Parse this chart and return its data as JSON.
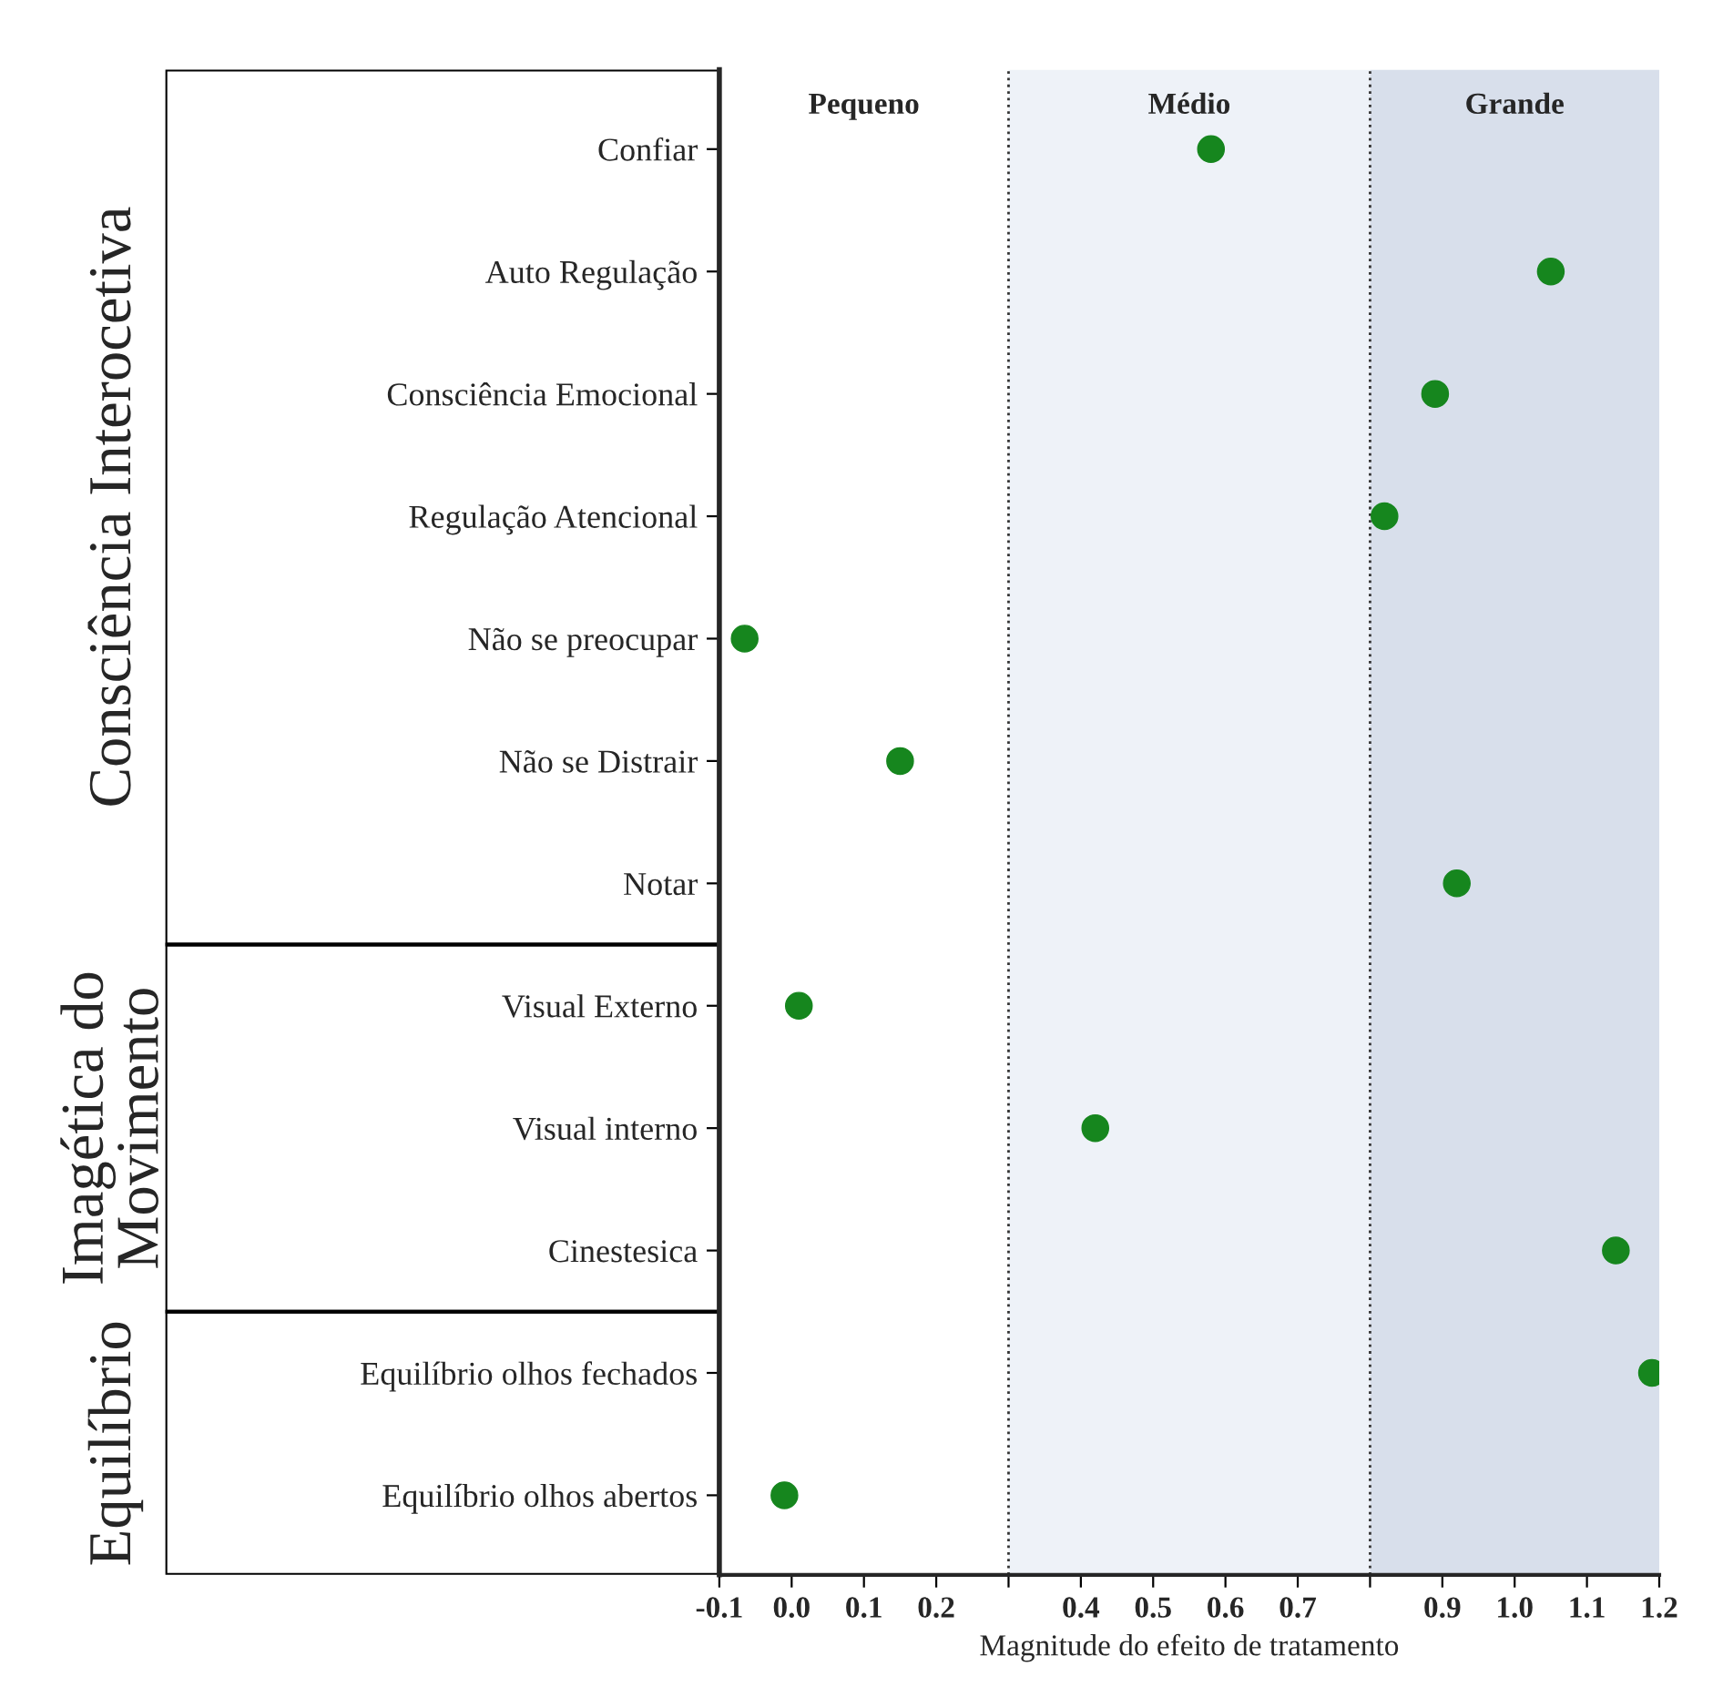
{
  "chart_data": {
    "type": "scatter",
    "orientation": "horizontal",
    "xlabel": "Magnitude do efeito de tratamento",
    "categories": [
      "Confiar",
      "Auto Regulação",
      "Consciência Emocional",
      "Regulação Atencional",
      "Não se preocupar",
      "Não se Distrair",
      "Notar",
      "Visual Externo",
      "Visual interno",
      "Cinestesica",
      "Equilíbrio olhos fechados",
      "Equilíbrio olhos abertos"
    ],
    "series": [
      {
        "color": "#16861e",
        "values": [
          0.58,
          1.05,
          0.89,
          0.82,
          -0.065,
          0.15,
          0.92,
          0.01,
          0.42,
          1.14,
          1.19,
          -0.01
        ]
      }
    ],
    "xlim": [
      -0.1,
      1.2
    ],
    "xticks": [
      -0.1,
      {
        "value": 0.0,
        "label": "0.0"
      },
      0.1,
      0.2,
      {
        "value": 0.3,
        "label": null
      },
      0.4,
      0.5,
      0.6,
      0.7,
      {
        "value": 0.8,
        "label": null
      },
      0.9,
      {
        "value": 1.0,
        "label": "1.0"
      },
      1.1,
      1.2
    ],
    "bands": [
      {
        "axis": "x",
        "from": 0.3,
        "to": 0.8,
        "label": "Médio",
        "color": "#eef2f8"
      },
      {
        "axis": "x",
        "from": 0.8,
        "to": 1.2,
        "label": "Grande",
        "color": "#d8dfeb"
      }
    ],
    "ref_lines": [
      {
        "axis": "x",
        "value": 0.3,
        "line_style": "dotted",
        "color": "#333333"
      },
      {
        "axis": "x",
        "value": 0.8,
        "line_style": "dotted",
        "color": "#333333"
      }
    ],
    "annotations": [
      "Consciência Interocetiva",
      "Imagética do\nMovimento",
      "Equilíbrio",
      "Pequeno"
    ],
    "marker": "circle",
    "grid": false,
    "legend": false
  }
}
